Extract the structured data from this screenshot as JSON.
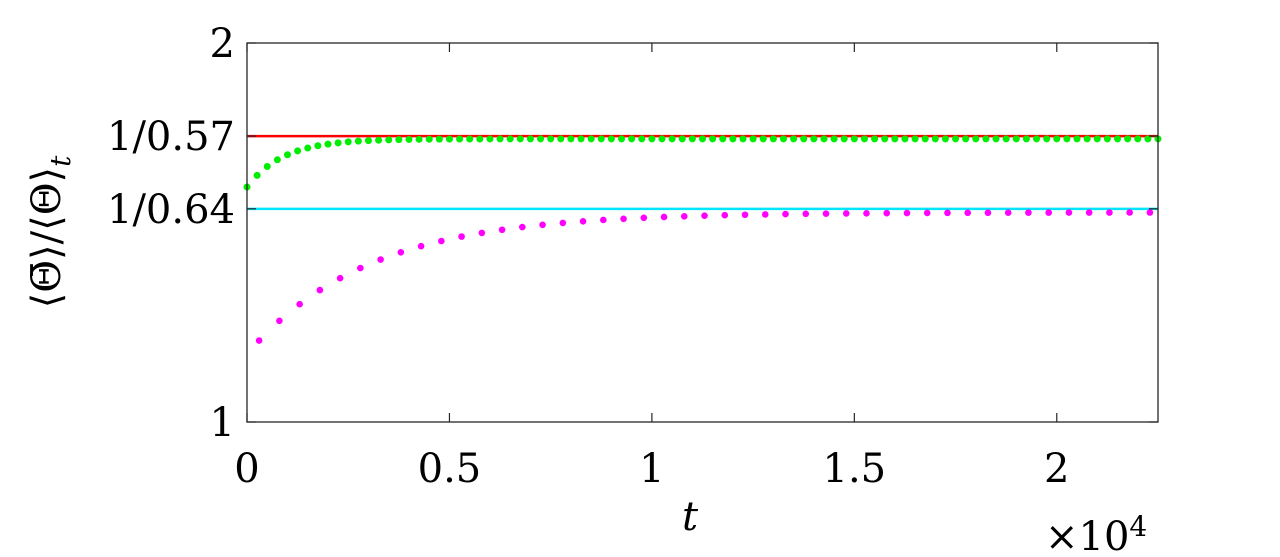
{
  "chart_data": {
    "type": "scatter",
    "xlabel": "t",
    "ylabel": "⟨Θ̄⟩/⟨Θ⟩",
    "ylabel_subscript": "t",
    "x_multiplier": "×10",
    "x_multiplier_exp": "4",
    "xlim": [
      0,
      22500
    ],
    "ylim": [
      1,
      2
    ],
    "grid": false,
    "x_ticks": [
      {
        "value": 0,
        "label": "0"
      },
      {
        "value": 5000,
        "label": "0.5"
      },
      {
        "value": 10000,
        "label": "1"
      },
      {
        "value": 15000,
        "label": "1.5"
      },
      {
        "value": 20000,
        "label": "2"
      }
    ],
    "y_ticks": [
      {
        "value": 1,
        "label": "1"
      },
      {
        "value": 1.5625,
        "label": "1/0.64"
      },
      {
        "value": 1.7544,
        "label": "1/0.57"
      },
      {
        "value": 2,
        "label": "2"
      }
    ],
    "hlines": [
      {
        "value": 1.7544,
        "color": "#ff0000"
      },
      {
        "value": 1.5625,
        "color": "#00e5ff"
      }
    ],
    "series": [
      {
        "color": "#00ee00",
        "marker_size": 3.5,
        "x_start": 0,
        "x_end": 22500,
        "count": 91,
        "y_start": 1.62,
        "y_plateau": 1.747,
        "tau": 900
      },
      {
        "color": "#ff00ff",
        "marker_size": 3.3,
        "x_start": 300,
        "x_end": 22300,
        "count": 45,
        "y_start": 1.215,
        "y_plateau": 1.553,
        "tau": 3000
      }
    ]
  }
}
